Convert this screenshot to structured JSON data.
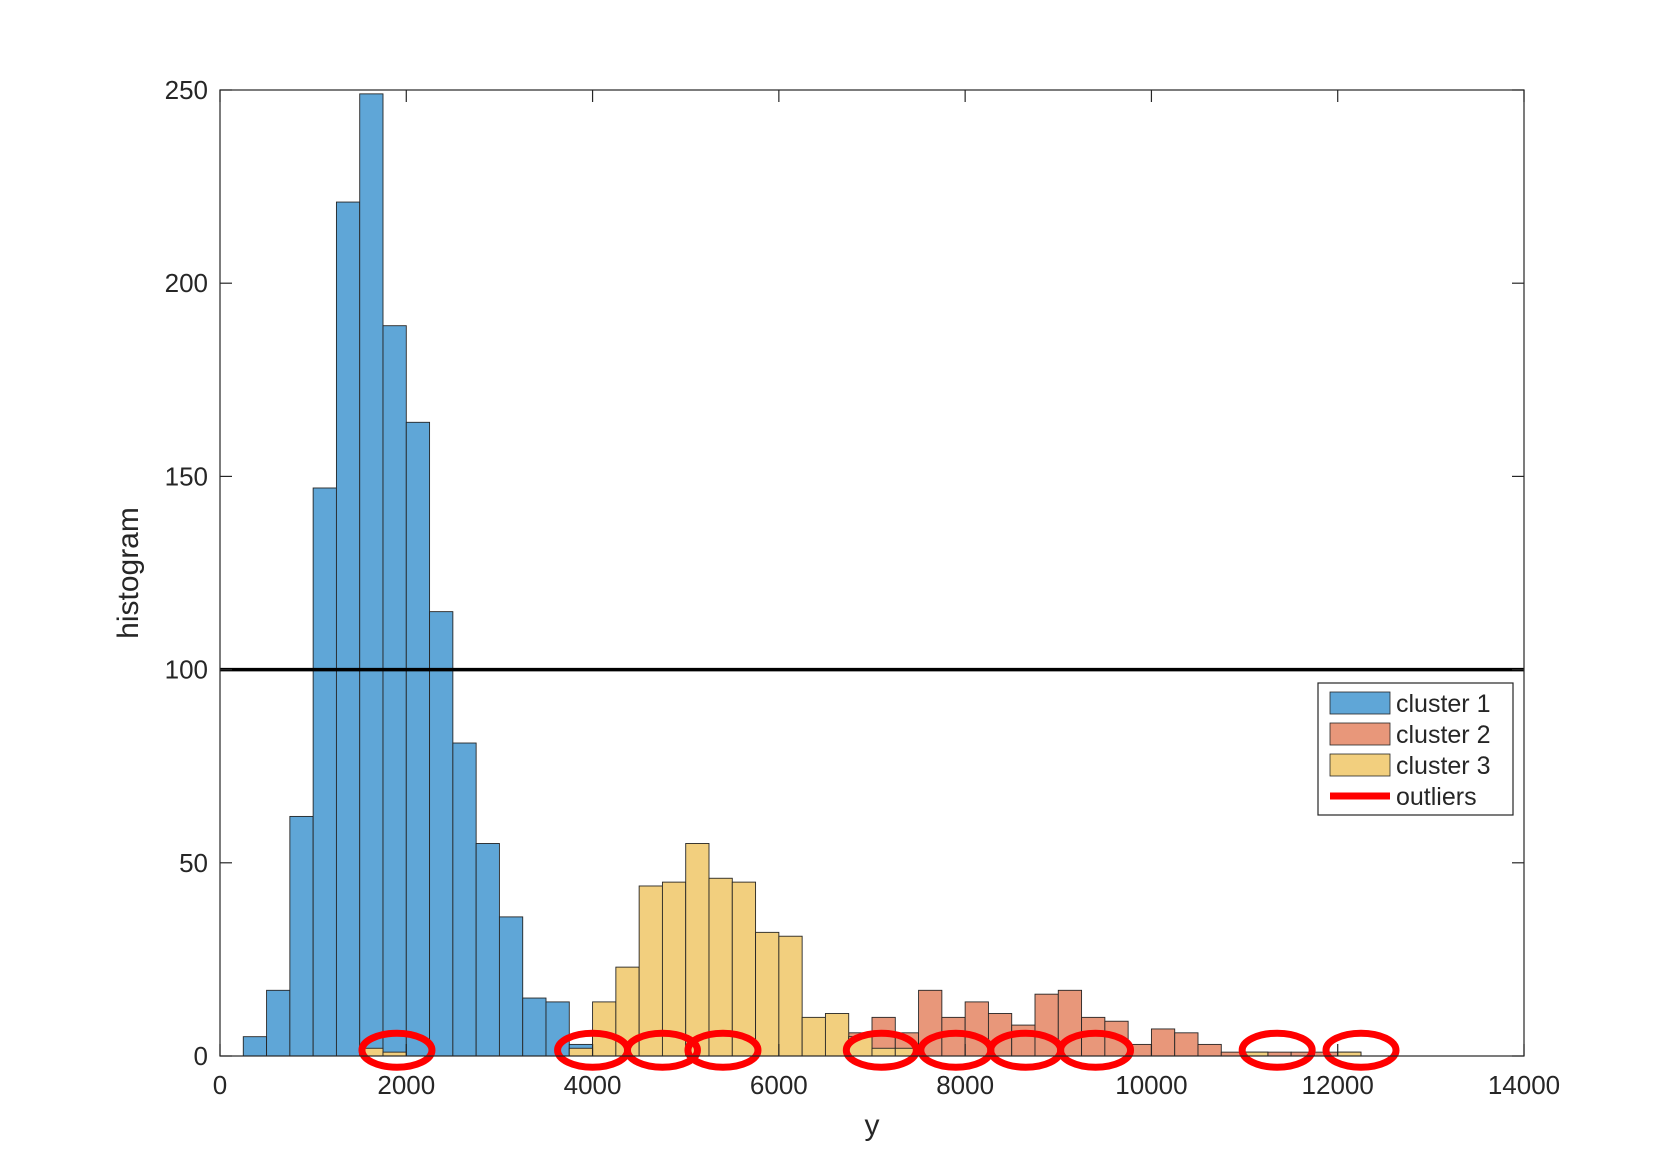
{
  "chart_data": {
    "type": "bar",
    "title": "",
    "xlabel": "y",
    "ylabel": "histogram",
    "xlim": [
      0,
      14000
    ],
    "ylim": [
      0,
      250
    ],
    "xticks": [
      0,
      2000,
      4000,
      6000,
      8000,
      10000,
      12000,
      14000
    ],
    "yticks": [
      0,
      50,
      100,
      150,
      200,
      250
    ],
    "bin_width": 250,
    "grid": false,
    "legend_position": "right",
    "threshold_line": {
      "y": 100,
      "color": "#000000"
    },
    "series": [
      {
        "name": "cluster 1",
        "color": "#5fa6d7",
        "bars": [
          {
            "x": 500,
            "y": 5
          },
          {
            "x": 750,
            "y": 17
          },
          {
            "x": 1000,
            "y": 62
          },
          {
            "x": 1250,
            "y": 147
          },
          {
            "x": 1500,
            "y": 221
          },
          {
            "x": 1750,
            "y": 249
          },
          {
            "x": 2000,
            "y": 189
          },
          {
            "x": 2250,
            "y": 164
          },
          {
            "x": 2500,
            "y": 115
          },
          {
            "x": 2750,
            "y": 81
          },
          {
            "x": 3000,
            "y": 55
          },
          {
            "x": 3250,
            "y": 36
          },
          {
            "x": 3500,
            "y": 15
          },
          {
            "x": 3750,
            "y": 14
          },
          {
            "x": 4000,
            "y": 3
          },
          {
            "x": 4250,
            "y": 5
          },
          {
            "x": 4500,
            "y": 1
          },
          {
            "x": 5000,
            "y": 1
          }
        ]
      },
      {
        "name": "cluster 2",
        "color": "#e8977a",
        "bars": [
          {
            "x": 6500,
            "y": 1
          },
          {
            "x": 6750,
            "y": 2
          },
          {
            "x": 7000,
            "y": 6
          },
          {
            "x": 7250,
            "y": 10
          },
          {
            "x": 7500,
            "y": 6
          },
          {
            "x": 7750,
            "y": 17
          },
          {
            "x": 8000,
            "y": 10
          },
          {
            "x": 8250,
            "y": 14
          },
          {
            "x": 8500,
            "y": 11
          },
          {
            "x": 8750,
            "y": 8
          },
          {
            "x": 9000,
            "y": 16
          },
          {
            "x": 9250,
            "y": 17
          },
          {
            "x": 9500,
            "y": 10
          },
          {
            "x": 9750,
            "y": 9
          },
          {
            "x": 10000,
            "y": 3
          },
          {
            "x": 10250,
            "y": 7
          },
          {
            "x": 10500,
            "y": 6
          },
          {
            "x": 10750,
            "y": 3
          },
          {
            "x": 11000,
            "y": 1
          },
          {
            "x": 11250,
            "y": 1
          },
          {
            "x": 11500,
            "y": 1
          },
          {
            "x": 11750,
            "y": 1
          },
          {
            "x": 12000,
            "y": 1
          },
          {
            "x": 12250,
            "y": 1
          }
        ]
      },
      {
        "name": "cluster 3",
        "color": "#f2cf7e",
        "bars": [
          {
            "x": 4250,
            "y": 14
          },
          {
            "x": 4500,
            "y": 23
          },
          {
            "x": 4750,
            "y": 44
          },
          {
            "x": 5000,
            "y": 45
          },
          {
            "x": 5250,
            "y": 55
          },
          {
            "x": 5500,
            "y": 46
          },
          {
            "x": 5750,
            "y": 45
          },
          {
            "x": 6000,
            "y": 32
          },
          {
            "x": 6250,
            "y": 31
          },
          {
            "x": 6500,
            "y": 10
          },
          {
            "x": 6750,
            "y": 11
          },
          {
            "x": 7000,
            "y": 5
          },
          {
            "x": 7250,
            "y": 2
          },
          {
            "x": 7500,
            "y": 2
          },
          {
            "x": 1750,
            "y": 2
          },
          {
            "x": 2000,
            "y": 1
          },
          {
            "x": 4000,
            "y": 2
          },
          {
            "x": 11250,
            "y": 1
          },
          {
            "x": 12250,
            "y": 1
          }
        ]
      }
    ],
    "outliers": {
      "name": "outliers",
      "color": "#ff0000",
      "centers_x": [
        1900,
        4000,
        4750,
        5400,
        7100,
        7900,
        8650,
        9400,
        11350,
        12250
      ]
    },
    "legend": [
      "cluster 1",
      "cluster 2",
      "cluster 3",
      "outliers"
    ]
  }
}
